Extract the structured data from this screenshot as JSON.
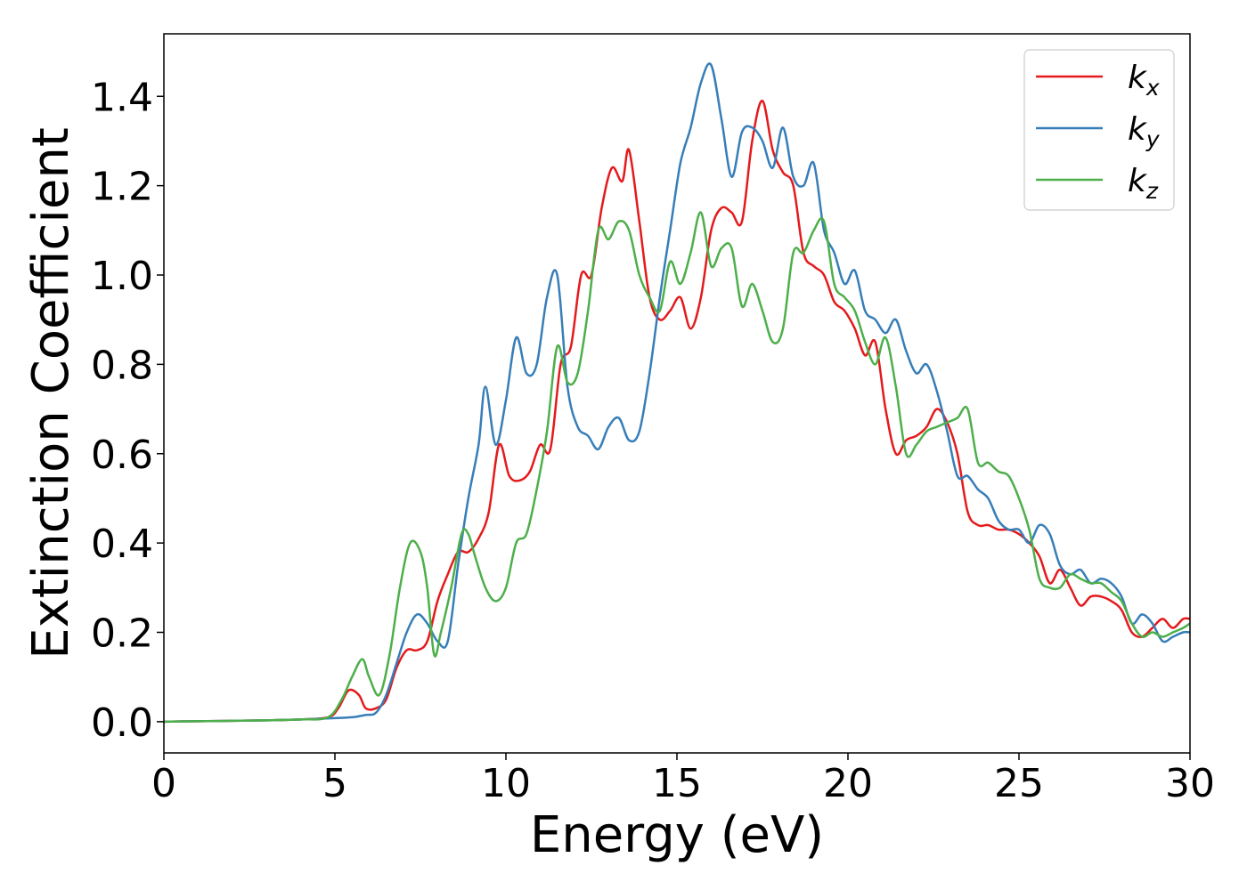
{
  "chart_data": {
    "type": "line",
    "xlabel": "Energy (eV)",
    "ylabel": "Extinction Coefficient",
    "xlim": [
      0,
      30
    ],
    "ylim": [
      -0.07,
      1.54
    ],
    "xticks": [
      "0",
      "5",
      "10",
      "15",
      "20",
      "25",
      "30"
    ],
    "yticks": [
      "0.0",
      "0.2",
      "0.4",
      "0.6",
      "0.8",
      "1.0",
      "1.2",
      "1.4"
    ],
    "grid": false,
    "legend_position": "top-right",
    "series": [
      {
        "name": "k",
        "subscript": "x",
        "color": "#e41a1c",
        "x": [
          0,
          1,
          2,
          3,
          4,
          4.8,
          5.1,
          5.4,
          5.7,
          5.9,
          6.2,
          6.5,
          6.8,
          7.1,
          7.4,
          7.7,
          8.0,
          8.3,
          8.6,
          8.9,
          9.2,
          9.5,
          9.8,
          10.1,
          10.4,
          10.7,
          11.0,
          11.3,
          11.6,
          11.9,
          12.2,
          12.5,
          12.8,
          13.1,
          13.4,
          13.6,
          13.9,
          14.2,
          14.5,
          14.8,
          15.1,
          15.4,
          15.7,
          16.0,
          16.3,
          16.6,
          16.9,
          17.2,
          17.5,
          17.8,
          18.1,
          18.4,
          18.7,
          19.0,
          19.3,
          19.6,
          19.9,
          20.2,
          20.5,
          20.8,
          21.1,
          21.4,
          21.7,
          22.0,
          22.3,
          22.6,
          22.9,
          23.2,
          23.5,
          23.8,
          24.1,
          24.4,
          24.7,
          25.0,
          25.3,
          25.6,
          25.9,
          26.2,
          26.5,
          26.8,
          27.1,
          27.4,
          27.7,
          28.0,
          28.3,
          28.6,
          28.9,
          29.2,
          29.5,
          29.8,
          30.0
        ],
        "y": [
          0,
          0.001,
          0.002,
          0.003,
          0.005,
          0.01,
          0.03,
          0.07,
          0.06,
          0.03,
          0.03,
          0.05,
          0.12,
          0.16,
          0.16,
          0.18,
          0.27,
          0.33,
          0.38,
          0.38,
          0.41,
          0.47,
          0.62,
          0.55,
          0.54,
          0.56,
          0.62,
          0.61,
          0.8,
          0.84,
          1.0,
          1.0,
          1.15,
          1.24,
          1.21,
          1.28,
          1.12,
          0.95,
          0.9,
          0.92,
          0.95,
          0.88,
          0.95,
          1.1,
          1.15,
          1.14,
          1.12,
          1.3,
          1.39,
          1.28,
          1.23,
          1.2,
          1.05,
          1.02,
          1.0,
          0.94,
          0.92,
          0.88,
          0.82,
          0.85,
          0.7,
          0.6,
          0.63,
          0.64,
          0.66,
          0.7,
          0.67,
          0.6,
          0.47,
          0.44,
          0.44,
          0.43,
          0.43,
          0.42,
          0.4,
          0.37,
          0.31,
          0.34,
          0.3,
          0.26,
          0.28,
          0.28,
          0.27,
          0.25,
          0.2,
          0.19,
          0.21,
          0.23,
          0.21,
          0.23,
          0.23
        ]
      },
      {
        "name": "k",
        "subscript": "y",
        "color": "#377eb8",
        "x": [
          0,
          1,
          2,
          3,
          4,
          5,
          5.5,
          5.9,
          6.2,
          6.5,
          6.8,
          7.1,
          7.4,
          7.7,
          8.0,
          8.3,
          8.6,
          8.9,
          9.2,
          9.4,
          9.7,
          10.0,
          10.3,
          10.6,
          10.9,
          11.2,
          11.5,
          11.8,
          12.1,
          12.4,
          12.7,
          13.0,
          13.3,
          13.6,
          13.9,
          14.2,
          14.5,
          14.8,
          15.1,
          15.4,
          15.7,
          16.0,
          16.3,
          16.6,
          16.9,
          17.2,
          17.5,
          17.8,
          18.1,
          18.4,
          18.7,
          19.0,
          19.3,
          19.6,
          19.9,
          20.2,
          20.5,
          20.8,
          21.1,
          21.4,
          21.7,
          22.0,
          22.3,
          22.6,
          22.9,
          23.2,
          23.5,
          23.8,
          24.1,
          24.4,
          24.7,
          25.0,
          25.3,
          25.6,
          25.9,
          26.2,
          26.5,
          26.8,
          27.1,
          27.4,
          27.7,
          28.0,
          28.3,
          28.6,
          28.9,
          29.2,
          29.5,
          29.8,
          30.0
        ],
        "y": [
          0,
          0.001,
          0.002,
          0.003,
          0.005,
          0.008,
          0.01,
          0.015,
          0.02,
          0.06,
          0.13,
          0.2,
          0.24,
          0.22,
          0.18,
          0.18,
          0.35,
          0.5,
          0.62,
          0.75,
          0.62,
          0.72,
          0.86,
          0.78,
          0.8,
          0.95,
          1.0,
          0.75,
          0.66,
          0.64,
          0.61,
          0.66,
          0.68,
          0.63,
          0.65,
          0.78,
          0.95,
          1.1,
          1.25,
          1.33,
          1.43,
          1.47,
          1.35,
          1.22,
          1.32,
          1.33,
          1.3,
          1.24,
          1.33,
          1.22,
          1.2,
          1.25,
          1.1,
          1.05,
          0.98,
          1.01,
          0.92,
          0.9,
          0.87,
          0.9,
          0.83,
          0.78,
          0.8,
          0.74,
          0.65,
          0.55,
          0.55,
          0.52,
          0.5,
          0.45,
          0.43,
          0.43,
          0.4,
          0.44,
          0.42,
          0.35,
          0.33,
          0.34,
          0.31,
          0.32,
          0.31,
          0.28,
          0.22,
          0.24,
          0.22,
          0.18,
          0.19,
          0.2,
          0.2
        ]
      },
      {
        "name": "k",
        "subscript": "z",
        "color": "#4daf4a",
        "x": [
          0,
          1,
          2,
          3,
          4,
          4.8,
          5.2,
          5.5,
          5.8,
          6.0,
          6.3,
          6.6,
          6.9,
          7.2,
          7.5,
          7.7,
          7.9,
          8.1,
          8.4,
          8.7,
          8.9,
          9.1,
          9.4,
          9.7,
          10.0,
          10.3,
          10.6,
          10.9,
          11.2,
          11.5,
          11.8,
          12.1,
          12.4,
          12.7,
          13.0,
          13.3,
          13.6,
          13.9,
          14.2,
          14.5,
          14.8,
          15.1,
          15.4,
          15.7,
          16.0,
          16.3,
          16.6,
          16.9,
          17.2,
          17.5,
          17.8,
          18.1,
          18.4,
          18.7,
          19.0,
          19.3,
          19.6,
          19.9,
          20.2,
          20.5,
          20.8,
          21.1,
          21.4,
          21.7,
          22.0,
          22.3,
          22.6,
          22.9,
          23.2,
          23.5,
          23.8,
          24.1,
          24.4,
          24.7,
          25.0,
          25.3,
          25.6,
          25.9,
          26.2,
          26.5,
          26.8,
          27.1,
          27.4,
          27.7,
          28.0,
          28.3,
          28.6,
          28.9,
          29.2,
          29.5,
          29.8,
          30.0
        ],
        "y": [
          0,
          0.001,
          0.002,
          0.003,
          0.005,
          0.01,
          0.05,
          0.1,
          0.14,
          0.1,
          0.06,
          0.15,
          0.3,
          0.4,
          0.38,
          0.3,
          0.15,
          0.2,
          0.3,
          0.42,
          0.42,
          0.37,
          0.3,
          0.27,
          0.3,
          0.4,
          0.42,
          0.52,
          0.65,
          0.84,
          0.76,
          0.78,
          0.92,
          1.1,
          1.08,
          1.12,
          1.1,
          1.0,
          0.95,
          0.92,
          1.03,
          0.98,
          1.05,
          1.14,
          1.02,
          1.06,
          1.06,
          0.93,
          0.98,
          0.92,
          0.85,
          0.88,
          1.05,
          1.05,
          1.1,
          1.12,
          0.98,
          0.95,
          0.92,
          0.85,
          0.8,
          0.86,
          0.75,
          0.6,
          0.62,
          0.65,
          0.66,
          0.67,
          0.68,
          0.7,
          0.58,
          0.58,
          0.56,
          0.55,
          0.5,
          0.43,
          0.32,
          0.3,
          0.3,
          0.33,
          0.32,
          0.31,
          0.31,
          0.29,
          0.27,
          0.22,
          0.19,
          0.2,
          0.19,
          0.2,
          0.21,
          0.22
        ]
      }
    ]
  }
}
